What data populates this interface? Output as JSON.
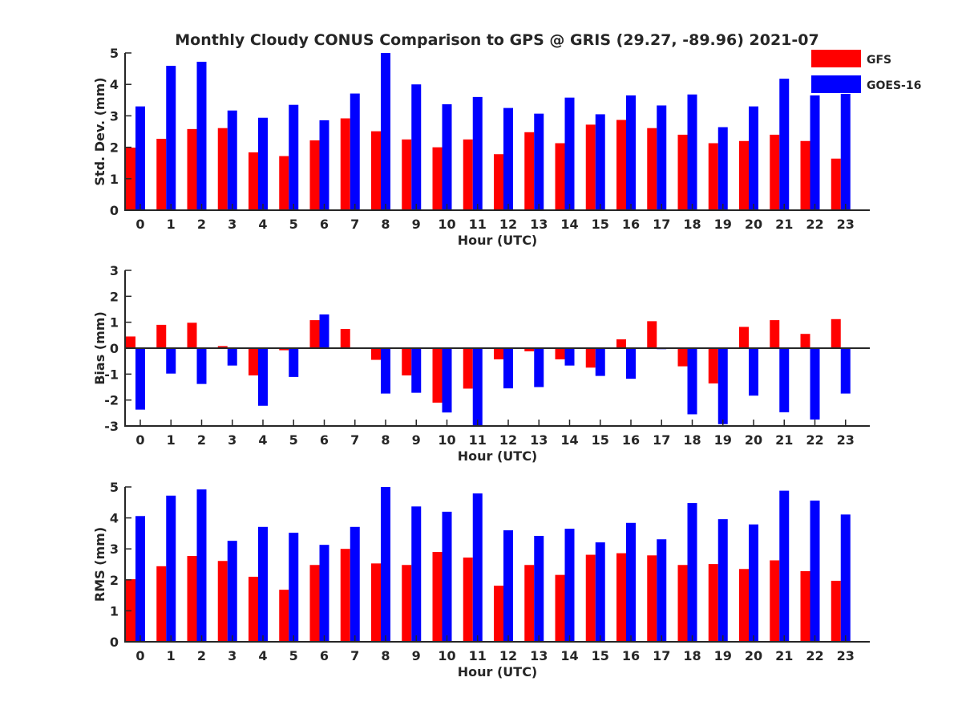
{
  "figure_title": "Monthly Cloudy CONUS Comparison to GPS @ GRIS (29.27, -89.96) 2021-07",
  "colors": {
    "gfs": "#ff0000",
    "goes": "#0000ff",
    "axis": "#262626"
  },
  "legend": {
    "placement": "top-right",
    "items": [
      {
        "name": "GFS",
        "color": "#ff0000"
      },
      {
        "name": "GOES-16",
        "color": "#0000ff"
      }
    ]
  },
  "chart_data": [
    {
      "type": "bar",
      "title": "Monthly Cloudy CONUS Comparison to GPS @ GRIS (29.27, -89.96) 2021-07",
      "xlabel": "Hour (UTC)",
      "ylabel": "Std. Dev. (mm)",
      "ylim": [
        0,
        5
      ],
      "yticks": [
        0,
        1,
        2,
        3,
        4,
        5
      ],
      "categories": [
        "0",
        "1",
        "2",
        "3",
        "4",
        "5",
        "6",
        "7",
        "8",
        "9",
        "10",
        "11",
        "12",
        "13",
        "14",
        "15",
        "16",
        "17",
        "18",
        "19",
        "20",
        "21",
        "22",
        "23"
      ],
      "series": [
        {
          "name": "GFS",
          "values": [
            1.99,
            2.27,
            2.58,
            2.61,
            1.84,
            1.72,
            2.22,
            2.92,
            2.51,
            2.25,
            2.0,
            2.25,
            1.78,
            2.48,
            2.13,
            2.72,
            2.87,
            2.61,
            2.4,
            2.13,
            2.2,
            2.4,
            2.2,
            1.64
          ]
        },
        {
          "name": "GOES-16",
          "values": [
            3.3,
            4.59,
            4.72,
            3.17,
            2.94,
            3.35,
            2.86,
            3.71,
            5.0,
            4.0,
            3.37,
            3.6,
            3.25,
            3.07,
            3.58,
            3.05,
            3.65,
            3.33,
            3.68,
            2.64,
            3.3,
            4.18,
            3.65,
            3.7
          ]
        }
      ]
    },
    {
      "type": "bar",
      "title": "",
      "xlabel": "Hour (UTC)",
      "ylabel": "Bias (mm)",
      "ylim": [
        -3,
        3
      ],
      "yticks": [
        -3,
        -2,
        -1,
        0,
        1,
        2,
        3
      ],
      "categories": [
        "0",
        "1",
        "2",
        "3",
        "4",
        "5",
        "6",
        "7",
        "8",
        "9",
        "10",
        "11",
        "12",
        "13",
        "14",
        "15",
        "16",
        "17",
        "18",
        "19",
        "20",
        "21",
        "22",
        "23"
      ],
      "series": [
        {
          "name": "GFS",
          "values": [
            0.45,
            0.9,
            0.98,
            0.08,
            -1.05,
            -0.08,
            1.08,
            0.74,
            -0.45,
            -1.05,
            -2.1,
            -1.56,
            -0.43,
            -0.12,
            -0.43,
            -0.75,
            0.34,
            1.04,
            -0.7,
            -1.36,
            0.82,
            1.08,
            0.55,
            1.12
          ]
        },
        {
          "name": "GOES-16",
          "values": [
            -2.37,
            -0.98,
            -1.38,
            -0.67,
            -2.22,
            -1.11,
            1.3,
            0.0,
            -1.75,
            -1.72,
            -2.48,
            -3.0,
            -1.55,
            -1.5,
            -0.67,
            -1.07,
            -1.18,
            -0.04,
            -2.55,
            -2.93,
            -1.83,
            -2.47,
            -2.75,
            -1.75
          ]
        }
      ]
    },
    {
      "type": "bar",
      "title": "",
      "xlabel": "Hour (UTC)",
      "ylabel": "RMS (mm)",
      "ylim": [
        0,
        5
      ],
      "yticks": [
        0,
        1,
        2,
        3,
        4,
        5
      ],
      "categories": [
        "0",
        "1",
        "2",
        "3",
        "4",
        "5",
        "6",
        "7",
        "8",
        "9",
        "10",
        "11",
        "12",
        "13",
        "14",
        "15",
        "16",
        "17",
        "18",
        "19",
        "20",
        "21",
        "22",
        "23"
      ],
      "series": [
        {
          "name": "GFS",
          "values": [
            2.02,
            2.44,
            2.77,
            2.61,
            2.1,
            1.68,
            2.48,
            3.0,
            2.53,
            2.48,
            2.9,
            2.72,
            1.81,
            2.48,
            2.16,
            2.81,
            2.86,
            2.79,
            2.48,
            2.51,
            2.35,
            2.63,
            2.28,
            1.97
          ]
        },
        {
          "name": "GOES-16",
          "values": [
            4.06,
            4.72,
            4.92,
            3.26,
            3.71,
            3.52,
            3.13,
            3.71,
            5.0,
            4.37,
            4.2,
            4.79,
            3.6,
            3.42,
            3.65,
            3.21,
            3.84,
            3.31,
            4.48,
            3.96,
            3.79,
            4.88,
            4.56,
            4.11
          ]
        }
      ]
    }
  ]
}
